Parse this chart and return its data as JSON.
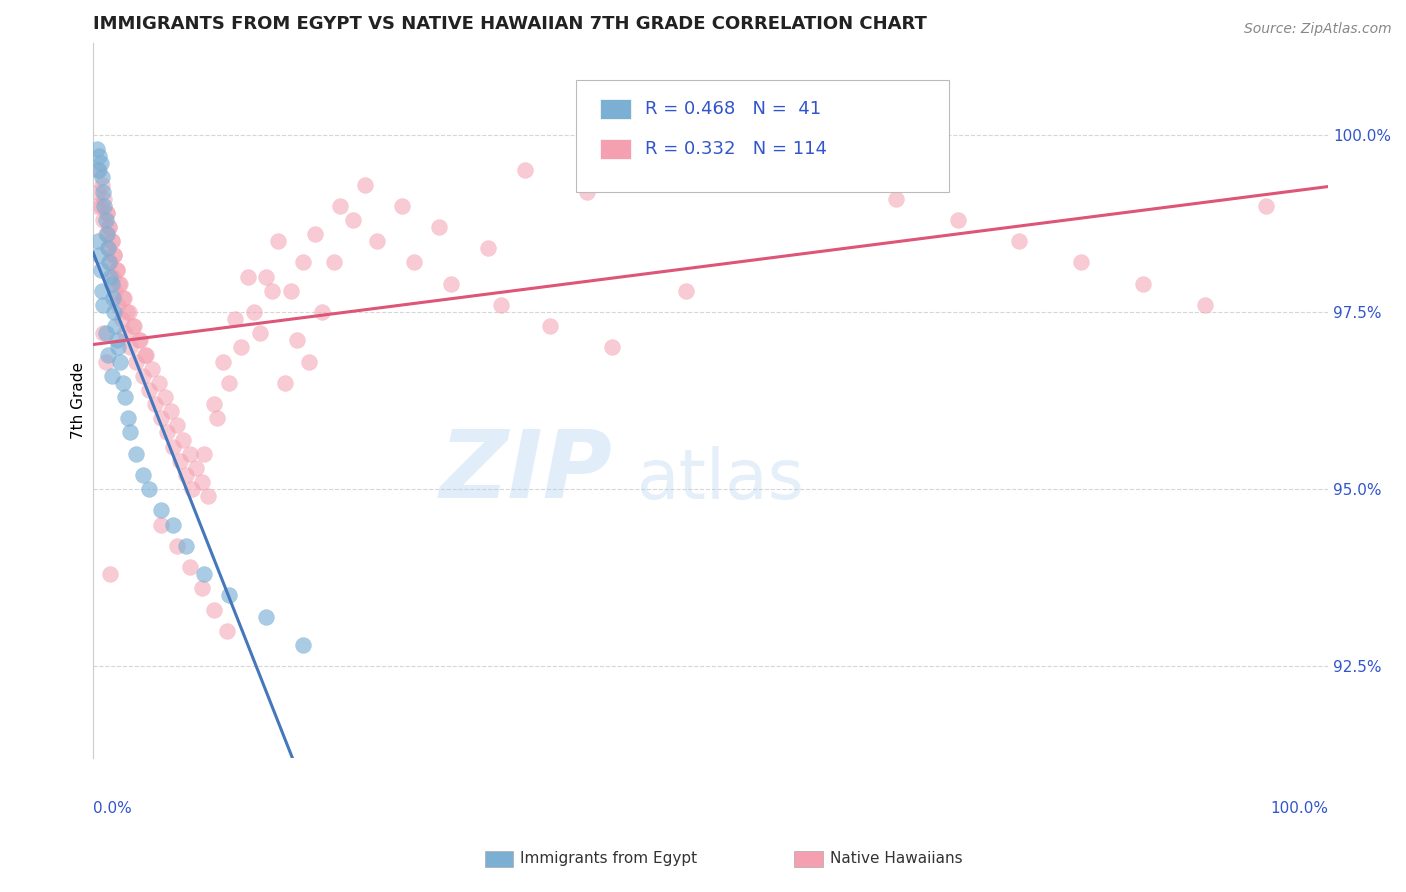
{
  "title": "IMMIGRANTS FROM EGYPT VS NATIVE HAWAIIAN 7TH GRADE CORRELATION CHART",
  "source_text": "Source: ZipAtlas.com",
  "ylabel": "7th Grade",
  "xlim": [
    0.0,
    100.0
  ],
  "ylim": [
    91.2,
    101.3
  ],
  "yticks": [
    92.5,
    95.0,
    97.5,
    100.0
  ],
  "ytick_labels": [
    "92.5%",
    "95.0%",
    "97.5%",
    "100.0%"
  ],
  "legend_r1": "R = 0.468",
  "legend_n1": "N =  41",
  "legend_r2": "R = 0.332",
  "legend_n2": "N = 114",
  "blue_color": "#7BAFD4",
  "pink_color": "#F4A0B0",
  "blue_line_color": "#4477BB",
  "pink_line_color": "#DD5577",
  "egypt_x": [
    0.3,
    0.4,
    0.5,
    0.6,
    0.7,
    0.8,
    0.9,
    1.0,
    1.1,
    1.2,
    1.3,
    1.4,
    1.5,
    1.6,
    1.7,
    1.8,
    1.9,
    2.0,
    2.2,
    2.4,
    2.6,
    2.8,
    3.0,
    3.5,
    4.0,
    4.5,
    5.5,
    6.5,
    7.5,
    9.0,
    11.0,
    14.0,
    17.0,
    0.4,
    0.5,
    0.6,
    0.7,
    0.8,
    1.0,
    1.2,
    1.5
  ],
  "egypt_y": [
    99.8,
    99.5,
    99.7,
    99.6,
    99.4,
    99.2,
    99.0,
    98.8,
    98.6,
    98.4,
    98.2,
    98.0,
    97.9,
    97.7,
    97.5,
    97.3,
    97.1,
    97.0,
    96.8,
    96.5,
    96.3,
    96.0,
    95.8,
    95.5,
    95.2,
    95.0,
    94.7,
    94.5,
    94.2,
    93.8,
    93.5,
    93.2,
    92.8,
    98.5,
    98.3,
    98.1,
    97.8,
    97.6,
    97.2,
    96.9,
    96.6
  ],
  "hawaiian_x": [
    0.4,
    0.6,
    0.8,
    1.0,
    1.2,
    1.4,
    1.6,
    1.8,
    2.0,
    2.3,
    2.6,
    3.0,
    3.5,
    4.0,
    4.5,
    5.0,
    5.5,
    6.0,
    6.5,
    7.0,
    7.5,
    8.0,
    9.0,
    10.0,
    11.0,
    12.0,
    13.0,
    14.0,
    15.0,
    16.0,
    17.0,
    18.0,
    20.0,
    22.0,
    25.0,
    28.0,
    32.0,
    35.0,
    40.0,
    45.0,
    50.0,
    55.0,
    60.0,
    65.0,
    70.0,
    75.0,
    80.0,
    85.0,
    90.0,
    95.0,
    1.1,
    1.3,
    1.5,
    1.7,
    1.9,
    2.1,
    2.4,
    2.7,
    3.2,
    3.7,
    4.2,
    4.8,
    5.3,
    5.8,
    6.3,
    6.8,
    7.3,
    7.8,
    8.3,
    8.8,
    9.3,
    9.8,
    10.5,
    11.5,
    12.5,
    13.5,
    14.5,
    15.5,
    16.5,
    17.5,
    18.5,
    19.5,
    21.0,
    23.0,
    26.0,
    29.0,
    33.0,
    37.0,
    42.0,
    48.0,
    0.5,
    0.7,
    0.9,
    1.1,
    1.3,
    1.5,
    1.7,
    1.9,
    2.2,
    2.5,
    2.9,
    3.3,
    3.8,
    4.3,
    5.5,
    6.8,
    7.8,
    8.8,
    9.8,
    10.8,
    0.3,
    0.8,
    1.0,
    1.4
  ],
  "hawaiian_y": [
    99.2,
    99.0,
    98.8,
    98.6,
    98.4,
    98.2,
    98.0,
    97.8,
    97.6,
    97.4,
    97.2,
    97.0,
    96.8,
    96.6,
    96.4,
    96.2,
    96.0,
    95.8,
    95.6,
    95.4,
    95.2,
    95.0,
    95.5,
    96.0,
    96.5,
    97.0,
    97.5,
    98.0,
    98.5,
    97.8,
    98.2,
    98.6,
    99.0,
    99.3,
    99.0,
    98.7,
    98.4,
    99.5,
    99.2,
    99.8,
    100.0,
    99.7,
    99.4,
    99.1,
    98.8,
    98.5,
    98.2,
    97.9,
    97.6,
    99.0,
    98.9,
    98.7,
    98.5,
    98.3,
    98.1,
    97.9,
    97.7,
    97.5,
    97.3,
    97.1,
    96.9,
    96.7,
    96.5,
    96.3,
    96.1,
    95.9,
    95.7,
    95.5,
    95.3,
    95.1,
    94.9,
    96.2,
    96.8,
    97.4,
    98.0,
    97.2,
    97.8,
    96.5,
    97.1,
    96.8,
    97.5,
    98.2,
    98.8,
    98.5,
    98.2,
    97.9,
    97.6,
    97.3,
    97.0,
    97.8,
    99.5,
    99.3,
    99.1,
    98.9,
    98.7,
    98.5,
    98.3,
    98.1,
    97.9,
    97.7,
    97.5,
    97.3,
    97.1,
    96.9,
    94.5,
    94.2,
    93.9,
    93.6,
    93.3,
    93.0,
    99.0,
    97.2,
    96.8,
    93.8
  ]
}
